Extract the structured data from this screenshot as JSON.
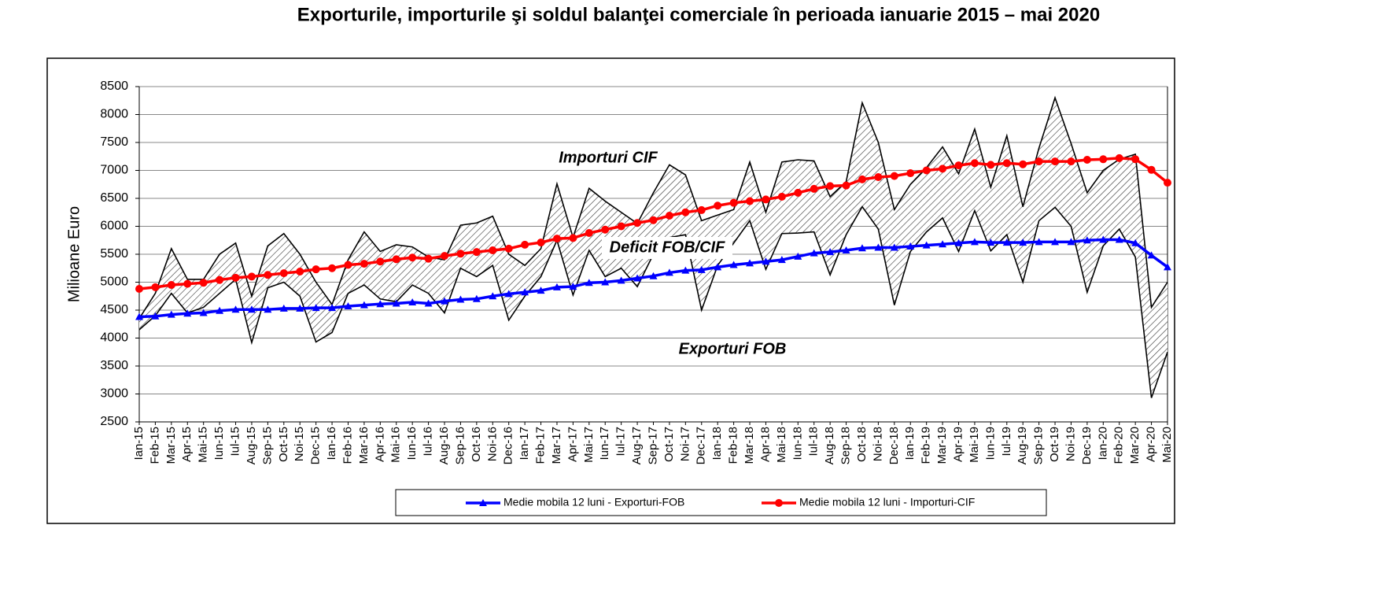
{
  "chart_data": {
    "type": "line",
    "title": "Exporturile, importurile şi soldul balanţei comerciale în perioada ianuarie 2015 – mai 2020",
    "y_label": "Milioane Euro",
    "categories": [
      "Ian-15",
      "Feb-15",
      "Mar-15",
      "Apr-15",
      "Mai-15",
      "Iun-15",
      "Iul-15",
      "Aug-15",
      "Sep-15",
      "Oct-15",
      "Noi-15",
      "Dec-15",
      "Ian-16",
      "Feb-16",
      "Mar-16",
      "Apr-16",
      "Mai-16",
      "Iun-16",
      "Iul-16",
      "Aug-16",
      "Sep-16",
      "Oct-16",
      "Noi-16",
      "Dec-16",
      "Ian-17",
      "Feb-17",
      "Mar-17",
      "Apr-17",
      "Mai-17",
      "Iun-17",
      "Iul-17",
      "Aug-17",
      "Sep-17",
      "Oct-17",
      "Noi-17",
      "Dec-17",
      "Ian-18",
      "Feb-18",
      "Mar-18",
      "Apr-18",
      "Mai-18",
      "Iun-18",
      "Iul-18",
      "Aug-18",
      "Sep-18",
      "Oct-18",
      "Noi-18",
      "Dec-18",
      "Ian-19",
      "Feb-19",
      "Mar-19",
      "Apr-19",
      "Mai-19",
      "Iun-19",
      "Iul-19",
      "Aug-19",
      "Sep-19",
      "Oct-19",
      "Noi-19",
      "Dec-19",
      "Ian-20",
      "Feb-20",
      "Mar-20",
      "Apr-20",
      "Mai-20"
    ],
    "monthly": {
      "imports": {
        "color": "#000000",
        "values": [
          4350,
          4800,
          5600,
          5050,
          5050,
          5500,
          5700,
          4750,
          5650,
          5870,
          5500,
          5000,
          4600,
          5400,
          5900,
          5550,
          5670,
          5630,
          5450,
          5400,
          6020,
          6060,
          6180,
          5500,
          5300,
          5600,
          6760,
          5800,
          6680,
          6450,
          6250,
          6050,
          6600,
          7100,
          6920,
          6100,
          6200,
          6300,
          7150,
          6250,
          7150,
          7190,
          7170,
          6530,
          6800,
          8210,
          7500,
          6300,
          6750,
          7050,
          7420,
          6940,
          7740,
          6700,
          7620,
          6350,
          7400,
          8300,
          7480,
          6600,
          7000,
          7200,
          7290,
          4550,
          5000
        ]
      },
      "exports": {
        "color": "#000000",
        "values": [
          4150,
          4400,
          4800,
          4450,
          4550,
          4800,
          5050,
          3920,
          4900,
          5000,
          4750,
          3930,
          4100,
          4800,
          4950,
          4700,
          4650,
          4950,
          4800,
          4450,
          5250,
          5100,
          5300,
          4320,
          4750,
          5100,
          5750,
          4770,
          5570,
          5100,
          5250,
          4920,
          5500,
          5800,
          5850,
          4500,
          5300,
          5700,
          6100,
          5230,
          5870,
          5880,
          5900,
          5130,
          5850,
          6350,
          5950,
          4590,
          5550,
          5900,
          6150,
          5550,
          6280,
          5560,
          5850,
          5000,
          6100,
          6340,
          6000,
          4820,
          5650,
          5950,
          5450,
          2930,
          3750
        ]
      }
    },
    "series": [
      {
        "name": "Medie mobila 12 luni - Exporturi-FOB",
        "color": "#0000ff",
        "marker": "triangle",
        "values": [
          4380,
          4390,
          4420,
          4440,
          4450,
          4490,
          4510,
          4510,
          4510,
          4530,
          4530,
          4540,
          4540,
          4570,
          4590,
          4610,
          4620,
          4640,
          4620,
          4660,
          4690,
          4700,
          4750,
          4790,
          4820,
          4850,
          4910,
          4920,
          4990,
          5000,
          5030,
          5070,
          5110,
          5170,
          5210,
          5220,
          5270,
          5310,
          5340,
          5370,
          5400,
          5460,
          5520,
          5540,
          5570,
          5610,
          5620,
          5620,
          5640,
          5660,
          5680,
          5700,
          5720,
          5710,
          5710,
          5710,
          5720,
          5720,
          5720,
          5750,
          5760,
          5760,
          5700,
          5480,
          5270
        ]
      },
      {
        "name": "Medie mobila 12 luni - Importuri-CIF",
        "color": "#ff0000",
        "marker": "circle",
        "values": [
          4880,
          4910,
          4950,
          4970,
          4990,
          5040,
          5080,
          5100,
          5130,
          5160,
          5190,
          5230,
          5250,
          5310,
          5330,
          5370,
          5410,
          5440,
          5420,
          5470,
          5510,
          5540,
          5570,
          5600,
          5670,
          5710,
          5780,
          5790,
          5880,
          5940,
          6000,
          6060,
          6110,
          6190,
          6250,
          6290,
          6370,
          6420,
          6450,
          6480,
          6530,
          6600,
          6670,
          6720,
          6730,
          6840,
          6880,
          6900,
          6950,
          7000,
          7030,
          7090,
          7130,
          7100,
          7130,
          7110,
          7160,
          7160,
          7160,
          7190,
          7200,
          7220,
          7200,
          7010,
          6780
        ]
      }
    ],
    "annotations": [
      "Importuri CIF",
      "Deficit FOB/CIF",
      "Exporturi FOB"
    ],
    "ylim": [
      2500,
      8500
    ],
    "yticks": [
      2500,
      3000,
      3500,
      4000,
      4500,
      5000,
      5500,
      6000,
      6500,
      7000,
      7500,
      8000,
      8500
    ],
    "grid": true
  }
}
